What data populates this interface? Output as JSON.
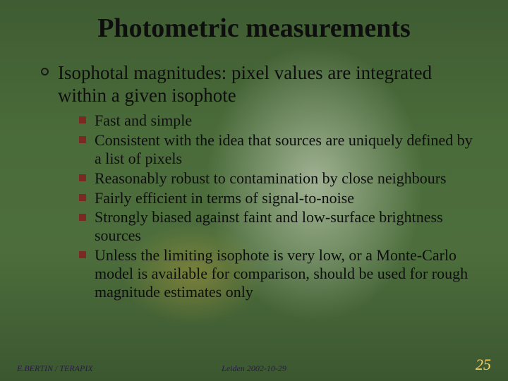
{
  "colors": {
    "background_base": "#4a6b3a",
    "background_gradient_top": "#3f5c32",
    "background_gradient_bottom": "#3b5730",
    "bg_highlight": "rgba(230,235,220,0.55)",
    "bg_warm_spot": "rgba(210,170,60,0.35)",
    "text": "#0e0e0e",
    "sub_bullet": "#7a2a22",
    "top_bullet_border": "#1a1a1a",
    "footer_text": "#2a1a4a",
    "page_number": "#ffd060"
  },
  "typography": {
    "title_fontsize": 38,
    "top_item_fontsize": 27,
    "sub_item_fontsize": 22,
    "footer_fontsize": 12,
    "pagenum_fontsize": 22,
    "font_family": "Times New Roman"
  },
  "title": "Photometric measurements",
  "top_items": [
    {
      "text": "Isophotal magnitudes: pixel values are integrated within a given isophote",
      "sub": [
        "Fast and simple",
        "Consistent with the idea that sources are uniquely defined by a list of pixels",
        "Reasonably robust to contamination by close neighbours",
        "Fairly efficient in terms of signal-to-noise",
        "Strongly biased against faint and low-surface brightness sources",
        "Unless the limiting isophote is very low, or a Monte-Carlo model is available for comparison, should be used for rough magnitude estimates only"
      ]
    }
  ],
  "footer": {
    "left": "E.BERTIN / TERAPIX",
    "center": "Leiden 2002-10-29",
    "page_number": "25"
  }
}
